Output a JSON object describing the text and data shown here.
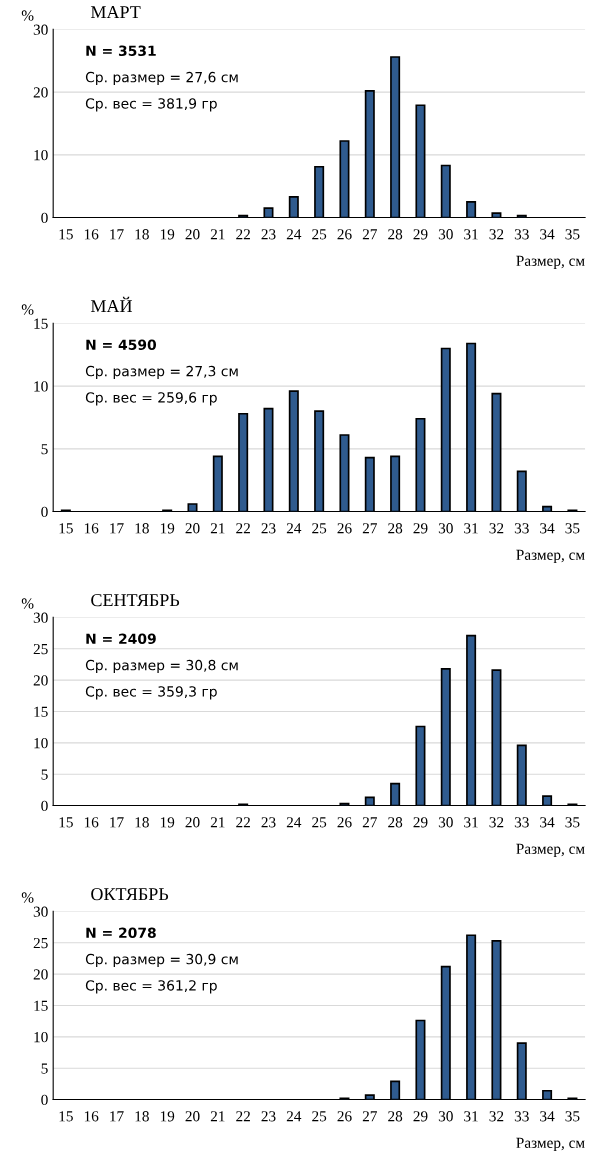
{
  "chart_data": [
    {
      "type": "bar",
      "title": "МАРТ",
      "ylabel": "%",
      "xlabel": "Размер, см",
      "categories": [
        "15",
        "16",
        "17",
        "18",
        "19",
        "20",
        "21",
        "22",
        "23",
        "24",
        "25",
        "26",
        "27",
        "28",
        "29",
        "30",
        "31",
        "32",
        "33",
        "34",
        "35"
      ],
      "color": "#2f5b8f",
      "values": [
        null,
        null,
        null,
        null,
        null,
        null,
        null,
        0.3,
        1.5,
        3.3,
        8.1,
        12.2,
        20.2,
        25.6,
        17.9,
        8.3,
        2.5,
        0.7,
        0.3,
        null,
        null
      ],
      "ylim": [
        0,
        30
      ],
      "yticks": [
        0,
        10,
        20,
        30
      ],
      "grid": "y",
      "annotations": [
        "N = 3531",
        "Ср. размер = 27,6 см",
        "Ср. вес = 381,9 гр"
      ]
    },
    {
      "type": "bar",
      "title": "МАЙ",
      "ylabel": "%",
      "xlabel": "Размер, см",
      "categories": [
        "15",
        "16",
        "17",
        "18",
        "19",
        "20",
        "21",
        "22",
        "23",
        "24",
        "25",
        "26",
        "27",
        "28",
        "29",
        "30",
        "31",
        "32",
        "33",
        "34",
        "35"
      ],
      "color": "#2f5b8f",
      "values": [
        0.1,
        null,
        null,
        null,
        0.1,
        0.6,
        4.4,
        7.8,
        8.2,
        9.6,
        8.0,
        6.1,
        4.3,
        4.4,
        7.4,
        13.0,
        13.4,
        9.4,
        3.2,
        0.4,
        0.1
      ],
      "ylim": [
        0,
        15
      ],
      "yticks": [
        0,
        5,
        10,
        15
      ],
      "grid": "y",
      "annotations": [
        "N = 4590",
        "Ср. размер = 27,3 см",
        "Ср. вес = 259,6 гр"
      ]
    },
    {
      "type": "bar",
      "title": "СЕНТЯБРЬ",
      "ylabel": "%",
      "xlabel": "Размер, см",
      "categories": [
        "15",
        "16",
        "17",
        "18",
        "19",
        "20",
        "21",
        "22",
        "23",
        "24",
        "25",
        "26",
        "27",
        "28",
        "29",
        "30",
        "31",
        "32",
        "33",
        "34",
        "35"
      ],
      "color": "#2f5b8f",
      "values": [
        null,
        null,
        null,
        null,
        null,
        null,
        null,
        0.2,
        null,
        null,
        null,
        0.3,
        1.3,
        3.5,
        12.6,
        21.8,
        27.1,
        21.6,
        9.6,
        1.5,
        0.2
      ],
      "ylim": [
        0,
        30
      ],
      "yticks": [
        0,
        5,
        10,
        15,
        20,
        25,
        30
      ],
      "grid": "y",
      "annotations": [
        "N = 2409",
        "Ср. размер = 30,8 см",
        "Ср. вес = 359,3 гр"
      ]
    },
    {
      "type": "bar",
      "title": "ОКТЯБРЬ",
      "ylabel": "%",
      "xlabel": "Размер, см",
      "categories": [
        "15",
        "16",
        "17",
        "18",
        "19",
        "20",
        "21",
        "22",
        "23",
        "24",
        "25",
        "26",
        "27",
        "28",
        "29",
        "30",
        "31",
        "32",
        "33",
        "34",
        "35"
      ],
      "color": "#2f5b8f",
      "values": [
        null,
        null,
        null,
        null,
        null,
        null,
        null,
        null,
        null,
        null,
        null,
        0.2,
        0.7,
        2.9,
        12.6,
        21.2,
        26.2,
        25.3,
        9.0,
        1.4,
        0.2
      ],
      "ylim": [
        0,
        30
      ],
      "yticks": [
        0,
        5,
        10,
        15,
        20,
        25,
        30
      ],
      "grid": "y",
      "annotations": [
        "N = 2078",
        "Ср. размер = 30,9 см",
        "Ср. вес = 361,2 гр"
      ]
    }
  ]
}
